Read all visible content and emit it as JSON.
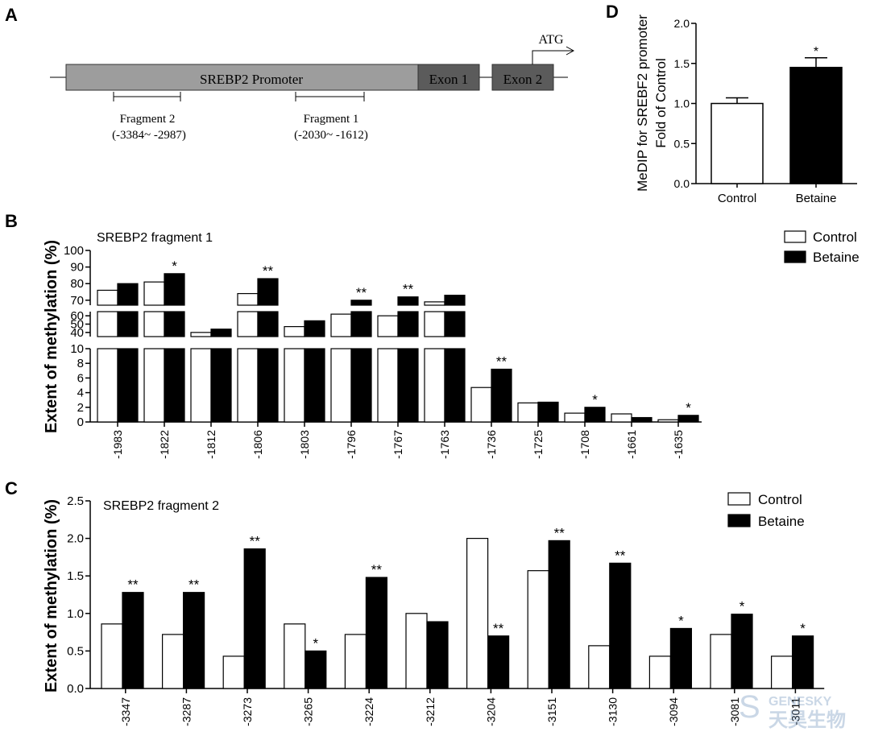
{
  "panels": {
    "a": "A",
    "b": "B",
    "c": "C",
    "d": "D"
  },
  "diagram": {
    "promoter_label": "SREBP2 Promoter",
    "exon1_label": "Exon 1",
    "exon2_label": "Exon 2",
    "atg_label": "ATG",
    "fragment2_label": "Fragment 2",
    "fragment2_range": "(-3384~ -2987)",
    "fragment1_label": "Fragment 1",
    "fragment1_range": "(-2030~ -1612)"
  },
  "watermark": {
    "latin": "GENESKY",
    "cjk": "天昊生物"
  },
  "chart_data": [
    {
      "id": "B",
      "type": "bar",
      "title": "SREBP2 fragment 1",
      "ylabel": "Extent of methylation (%)",
      "xlabel": "",
      "categories": [
        "-1983",
        "-1822",
        "-1812",
        "-1806",
        "-1803",
        "-1796",
        "-1767",
        "-1763",
        "-1736",
        "-1725",
        "-1708",
        "-1661",
        "-1635"
      ],
      "series": [
        {
          "name": "Control",
          "color": "#ffffff",
          "values": [
            76,
            81,
            40,
            74,
            47,
            62,
            60,
            69,
            4.7,
            2.6,
            1.2,
            1.1,
            0.3
          ]
        },
        {
          "name": "Betaine",
          "color": "#000000",
          "values": [
            80,
            86,
            44,
            83,
            54,
            70,
            72,
            73,
            7.2,
            2.7,
            2.0,
            0.6,
            0.9
          ]
        }
      ],
      "significance": [
        "",
        "*",
        "",
        "**",
        "",
        "**",
        "**",
        "",
        "**",
        "",
        "*",
        "",
        "*"
      ],
      "y_axis_segments": [
        {
          "range": [
            0,
            10
          ],
          "ticks": [
            "0",
            "2",
            "4",
            "6",
            "8",
            "10"
          ]
        },
        {
          "range": [
            35,
            65
          ],
          "ticks": [
            "40",
            "50",
            "60"
          ]
        },
        {
          "range": [
            67,
            100
          ],
          "ticks": [
            "70",
            "80",
            "90",
            "100"
          ]
        }
      ],
      "legend_position": "top-right",
      "grid": false
    },
    {
      "id": "C",
      "type": "bar",
      "title": "SREBP2 fragment 2",
      "ylabel": "Extent of methylation (%)",
      "xlabel": "",
      "categories": [
        "-3347",
        "-3287",
        "-3273",
        "-3265",
        "-3224",
        "-3212",
        "-3204",
        "-3151",
        "-3130",
        "-3094",
        "-3081",
        "-3011"
      ],
      "series": [
        {
          "name": "Control",
          "color": "#ffffff",
          "values": [
            0.86,
            0.72,
            0.43,
            0.86,
            0.72,
            1.0,
            2.0,
            1.57,
            0.57,
            0.43,
            0.72,
            0.43
          ]
        },
        {
          "name": "Betaine",
          "color": "#000000",
          "values": [
            1.28,
            1.28,
            1.86,
            0.5,
            1.48,
            0.89,
            0.7,
            1.97,
            1.67,
            0.8,
            0.99,
            0.7
          ]
        }
      ],
      "significance": [
        "**",
        "**",
        "**",
        "*",
        "**",
        "",
        "**",
        "**",
        "**",
        "*",
        "*",
        "*"
      ],
      "sig_over": [
        "Betaine",
        "Betaine",
        "Betaine",
        "Betaine",
        "Betaine",
        "",
        "Betaine",
        "Betaine",
        "Betaine",
        "Betaine",
        "Betaine",
        "Betaine"
      ],
      "ylim": [
        0,
        2.5
      ],
      "yticks": [
        "0.0",
        "0.5",
        "1.0",
        "1.5",
        "2.0",
        "2.5"
      ],
      "legend_position": "top-right",
      "grid": false
    },
    {
      "id": "D",
      "type": "bar",
      "title": "",
      "ylabel_lines": [
        "MeDIP for SREBF2 promoter",
        "Fold of Control"
      ],
      "xlabel": "",
      "categories": [
        "Control",
        "Betaine"
      ],
      "values": [
        1.0,
        1.45
      ],
      "errors": [
        0.07,
        0.12
      ],
      "colors": [
        "#ffffff",
        "#000000"
      ],
      "significance": [
        "",
        "*"
      ],
      "ylim": [
        0,
        2.0
      ],
      "yticks": [
        "0.0",
        "0.5",
        "1.0",
        "1.5",
        "2.0"
      ],
      "grid": false
    }
  ]
}
